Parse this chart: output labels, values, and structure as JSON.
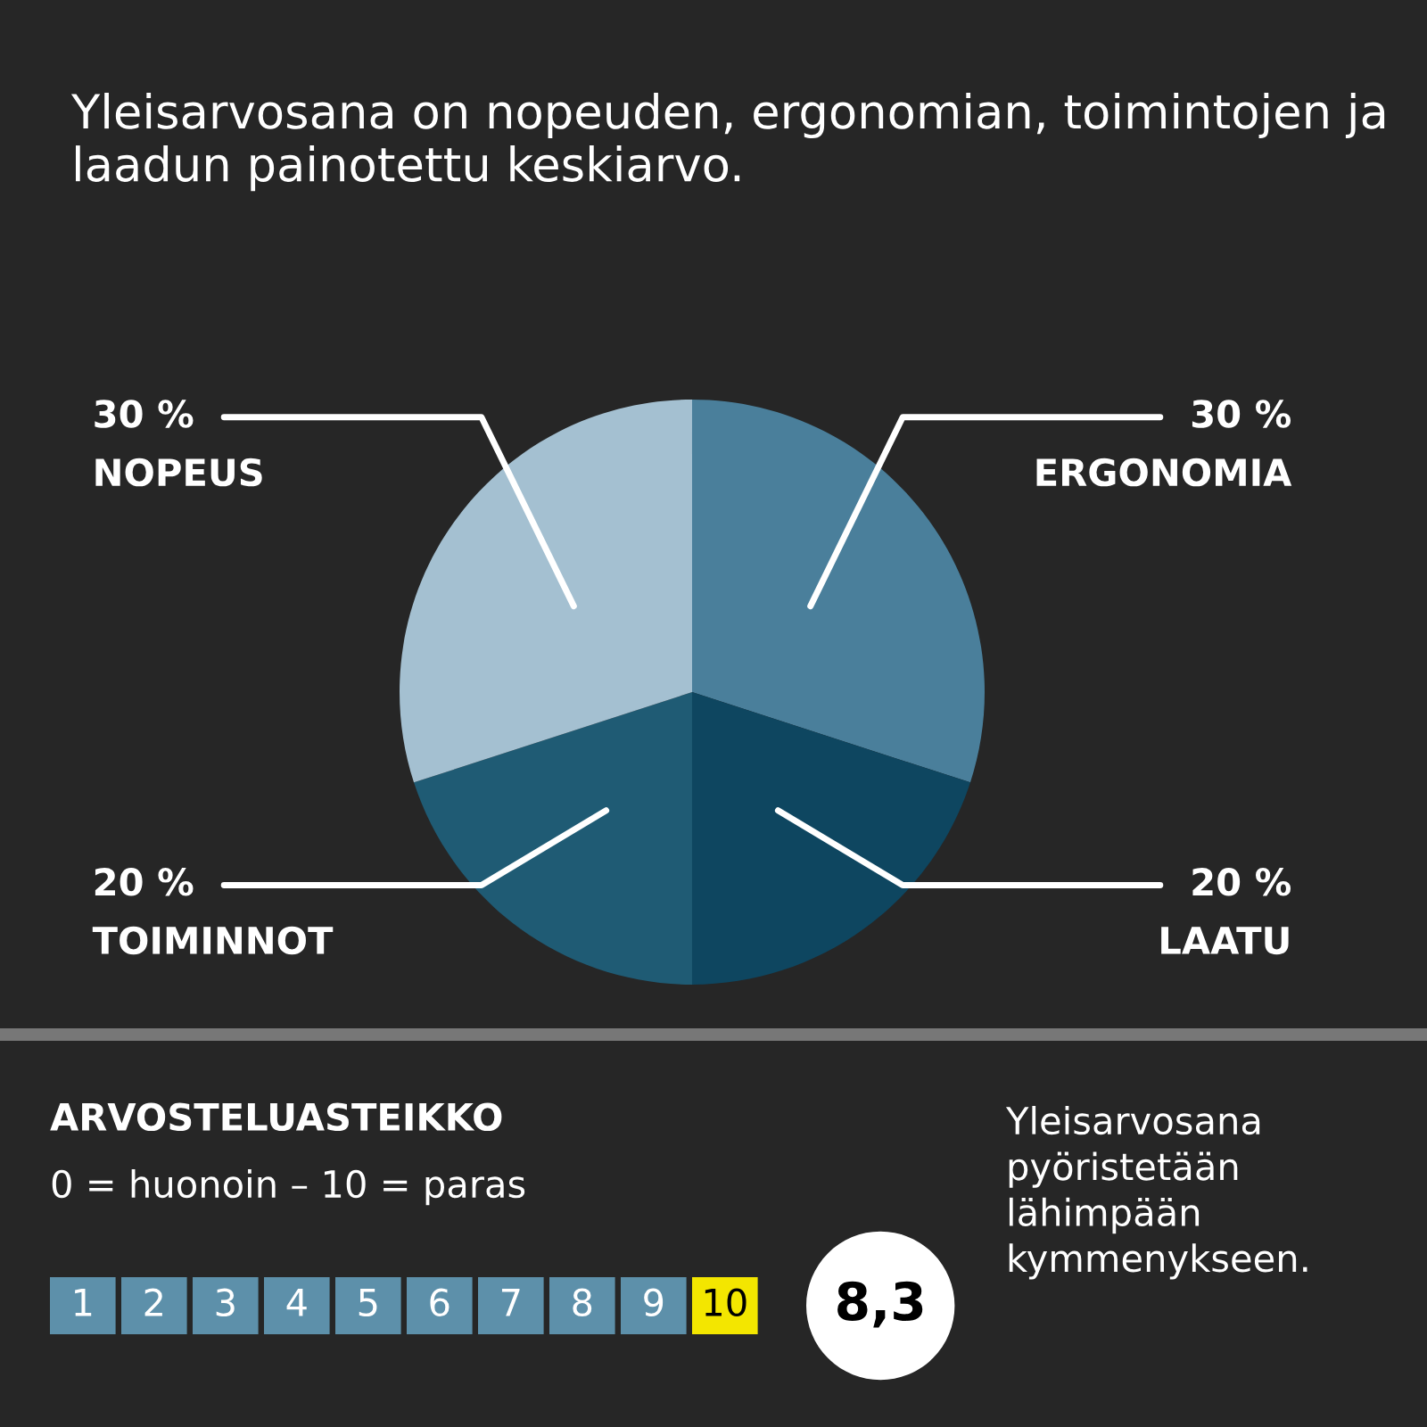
{
  "chart_data": {
    "type": "pie",
    "title": "Yleisarvosana on nopeuden, ergonomian, toimintojen ja laadun painotettu keskiarvo.",
    "categories": [
      "ERGONOMIA",
      "LAATU",
      "TOIMINNOT",
      "NOPEUS"
    ],
    "values": [
      30,
      20,
      20,
      30
    ],
    "value_labels": [
      "30 %",
      "20 %",
      "20 %",
      "30 %"
    ],
    "colors": [
      "#4a7f9b",
      "#0e4660",
      "#1f5b74",
      "#a4c0d1"
    ],
    "annotations": [
      "ARVOSTELUASTEIKKO",
      "0 = huonoin – 10 = paras",
      "1",
      "2",
      "3",
      "4",
      "5",
      "6",
      "7",
      "8",
      "9",
      "10",
      "8,3",
      "Yleisarvosana\npyöristetään\nlähimpään\nkymmenykseen."
    ],
    "legend": false
  }
}
